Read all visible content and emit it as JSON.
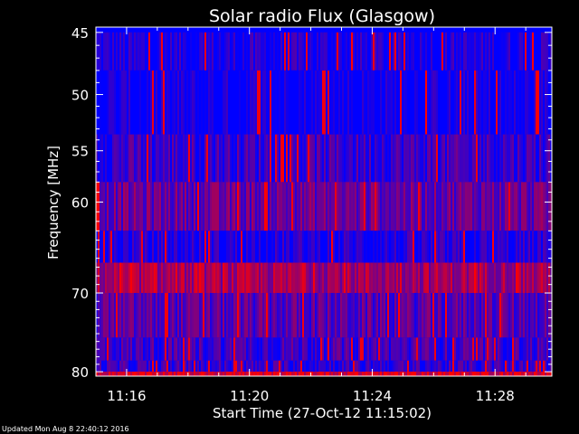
{
  "footer": "Updated Mon Aug  8 22:40:12 2016",
  "chart_data": {
    "type": "heatmap",
    "title": "Solar radio Flux (Glasgow)",
    "xlabel": "Start Time (27-Oct-12 11:15:02)",
    "ylabel": "Frequency [MHz]",
    "x_tick_labels": [
      "11:16",
      "11:20",
      "11:24",
      "11:28"
    ],
    "x_tick_minutes": [
      1.0,
      5.0,
      9.0,
      13.0
    ],
    "x_range_minutes": [
      0,
      14.85
    ],
    "y_tick_labels": [
      "45",
      "50",
      "55",
      "60",
      "70",
      "80"
    ],
    "y_tick_values": [
      45,
      50,
      55,
      60,
      70,
      80
    ],
    "ylim": [
      45,
      80
    ],
    "y_scale": "log",
    "y_inverted": true,
    "colormap": [
      "#0000ff",
      "#ff0000"
    ],
    "frequency_bands": [
      {
        "fmin": 45.0,
        "fmax": 48.0,
        "mean_intensity": 0.08
      },
      {
        "fmin": 48.0,
        "fmax": 53.5,
        "mean_intensity": 0.02
      },
      {
        "fmin": 53.5,
        "fmax": 58.0,
        "mean_intensity": 0.22
      },
      {
        "fmin": 58.0,
        "fmax": 63.0,
        "mean_intensity": 0.4
      },
      {
        "fmin": 63.0,
        "fmax": 66.5,
        "mean_intensity": 0.1
      },
      {
        "fmin": 66.5,
        "fmax": 70.0,
        "mean_intensity": 0.62
      },
      {
        "fmin": 70.0,
        "fmax": 75.5,
        "mean_intensity": 0.32
      },
      {
        "fmin": 75.5,
        "fmax": 78.5,
        "mean_intensity": 0.24
      },
      {
        "fmin": 78.5,
        "fmax": 80.0,
        "mean_intensity": 0.18
      },
      {
        "fmin": 80.0,
        "fmax": 80.6,
        "mean_intensity": 0.85
      }
    ]
  }
}
